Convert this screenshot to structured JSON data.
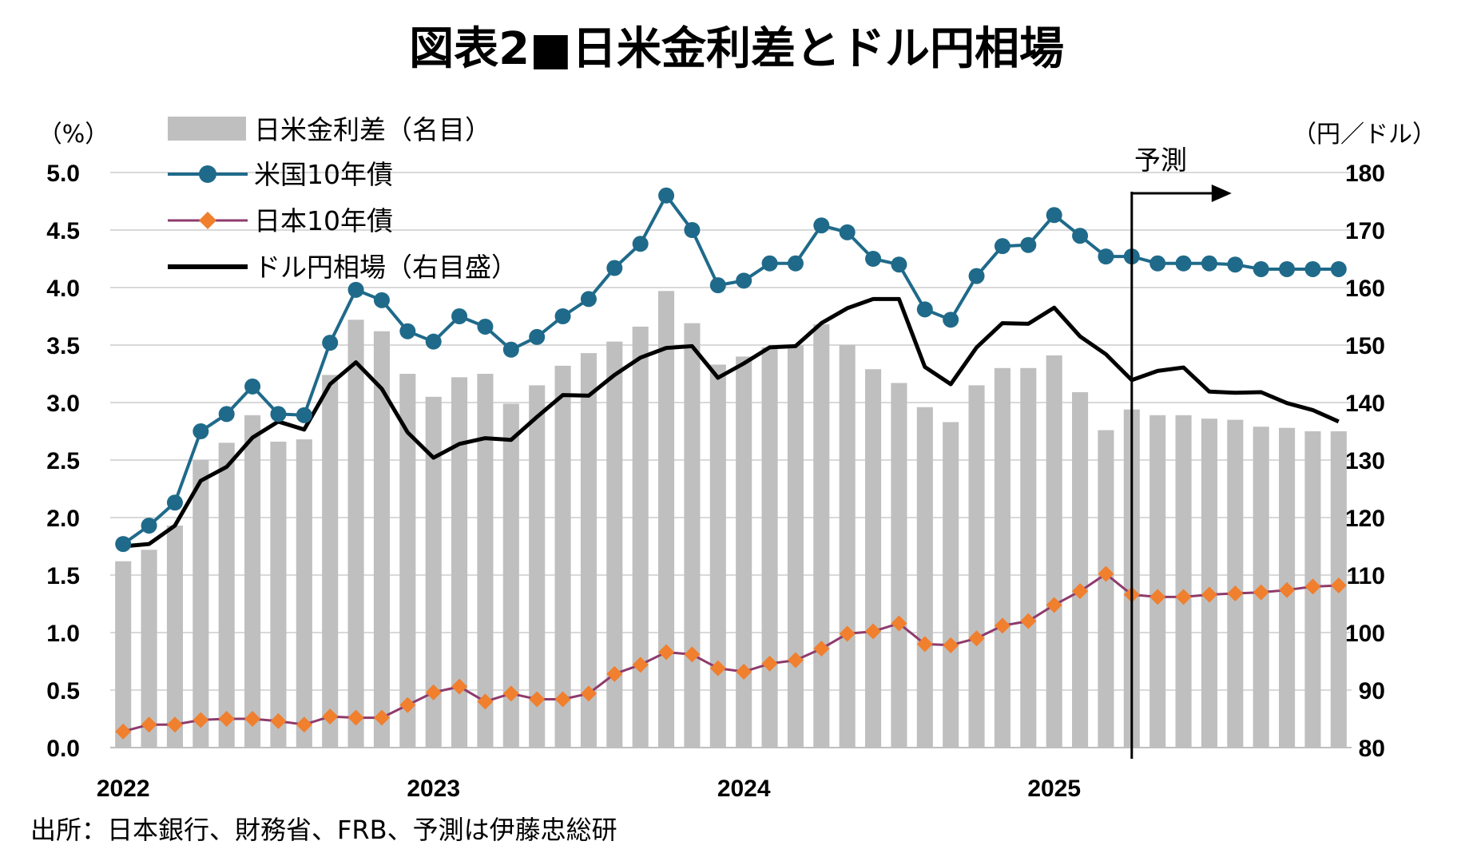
{
  "title": "図表2■日米金利差とドル円相場",
  "source": "出所：日本銀行、財務省、FRB、予測は伊藤忠総研",
  "forecast_label": "予測",
  "colors": {
    "spread_bar": "#BFBFBF",
    "us10y": "#1F6A8A",
    "jp10y_line": "#8E3B6C",
    "jp10y_marker": "#F07F2E",
    "usdjpy": "#000000",
    "grid": "#D9D9D9"
  },
  "chart_data": {
    "type": "bar+line",
    "title": "図表2■日米金利差とドル円相場",
    "left_axis": {
      "unit": "（%）",
      "ylim": [
        0,
        5
      ],
      "ticks": [
        "0.0",
        "0.5",
        "1.0",
        "1.5",
        "2.0",
        "2.5",
        "3.0",
        "3.5",
        "4.0",
        "4.5",
        "5.0"
      ]
    },
    "right_axis": {
      "unit": "（円／ドル）",
      "ylim": [
        80,
        180
      ],
      "ticks": [
        "80",
        "90",
        "100",
        "110",
        "120",
        "130",
        "140",
        "150",
        "160",
        "170",
        "180"
      ]
    },
    "x_year_labels": [
      {
        "label": "2022",
        "index": 0
      },
      {
        "label": "2023",
        "index": 12
      },
      {
        "label": "2024",
        "index": 24
      },
      {
        "label": "2025",
        "index": 36
      }
    ],
    "forecast_start_index": 40,
    "legend": {
      "placement": "top-left",
      "entries": [
        "日米金利差（名目）",
        "米国10年債",
        "日本10年債",
        "ドル円相場（右目盛）"
      ]
    },
    "series": [
      {
        "name": "日米金利差（名目）",
        "kind": "bar",
        "axis": "left",
        "values": [
          1.62,
          1.72,
          1.93,
          2.5,
          2.65,
          2.89,
          2.66,
          2.68,
          3.24,
          3.72,
          3.62,
          3.25,
          3.05,
          3.22,
          3.25,
          2.99,
          3.15,
          3.32,
          3.43,
          3.53,
          3.66,
          3.97,
          3.69,
          3.33,
          3.4,
          3.48,
          3.5,
          3.68,
          3.5,
          3.29,
          3.17,
          2.96,
          2.83,
          3.15,
          3.3,
          3.3,
          3.41,
          3.09,
          2.76,
          2.94,
          2.89,
          2.89,
          2.86,
          2.85,
          2.79,
          2.78,
          2.75,
          2.75
        ]
      },
      {
        "name": "米国10年債",
        "kind": "line",
        "axis": "left",
        "values": [
          1.77,
          1.93,
          2.13,
          2.75,
          2.9,
          3.14,
          2.9,
          2.89,
          3.52,
          3.98,
          3.89,
          3.62,
          3.53,
          3.75,
          3.66,
          3.46,
          3.57,
          3.75,
          3.9,
          4.17,
          4.38,
          4.8,
          4.5,
          4.02,
          4.06,
          4.21,
          4.21,
          4.54,
          4.48,
          4.25,
          4.2,
          3.81,
          3.72,
          4.1,
          4.36,
          4.37,
          4.63,
          4.45,
          4.27,
          4.27,
          4.21,
          4.21,
          4.21,
          4.2,
          4.16,
          4.16,
          4.16,
          4.16
        ]
      },
      {
        "name": "日本10年債",
        "kind": "line",
        "axis": "left",
        "values": [
          0.14,
          0.2,
          0.2,
          0.24,
          0.25,
          0.25,
          0.23,
          0.2,
          0.27,
          0.26,
          0.26,
          0.37,
          0.48,
          0.53,
          0.4,
          0.47,
          0.42,
          0.42,
          0.47,
          0.64,
          0.72,
          0.83,
          0.81,
          0.69,
          0.66,
          0.73,
          0.76,
          0.86,
          0.99,
          1.01,
          1.08,
          0.9,
          0.89,
          0.95,
          1.06,
          1.1,
          1.24,
          1.36,
          1.51,
          1.33,
          1.31,
          1.31,
          1.33,
          1.34,
          1.35,
          1.37,
          1.4,
          1.41
        ]
      },
      {
        "name": "ドル円相場（右目盛）",
        "kind": "line",
        "axis": "right",
        "values": [
          115.0,
          115.4,
          118.6,
          126.4,
          128.8,
          133.9,
          136.7,
          135.3,
          143.2,
          147.0,
          142.4,
          134.8,
          130.4,
          132.8,
          133.8,
          133.5,
          137.5,
          141.3,
          141.2,
          144.8,
          147.8,
          149.5,
          149.8,
          144.3,
          146.8,
          149.6,
          149.8,
          153.8,
          156.4,
          158.0,
          158.0,
          146.2,
          143.2,
          149.6,
          153.8,
          153.7,
          156.5,
          151.5,
          148.4,
          143.9,
          145.5,
          146.1,
          141.9,
          141.7,
          141.8,
          139.9,
          138.7,
          136.7
        ]
      }
    ]
  }
}
